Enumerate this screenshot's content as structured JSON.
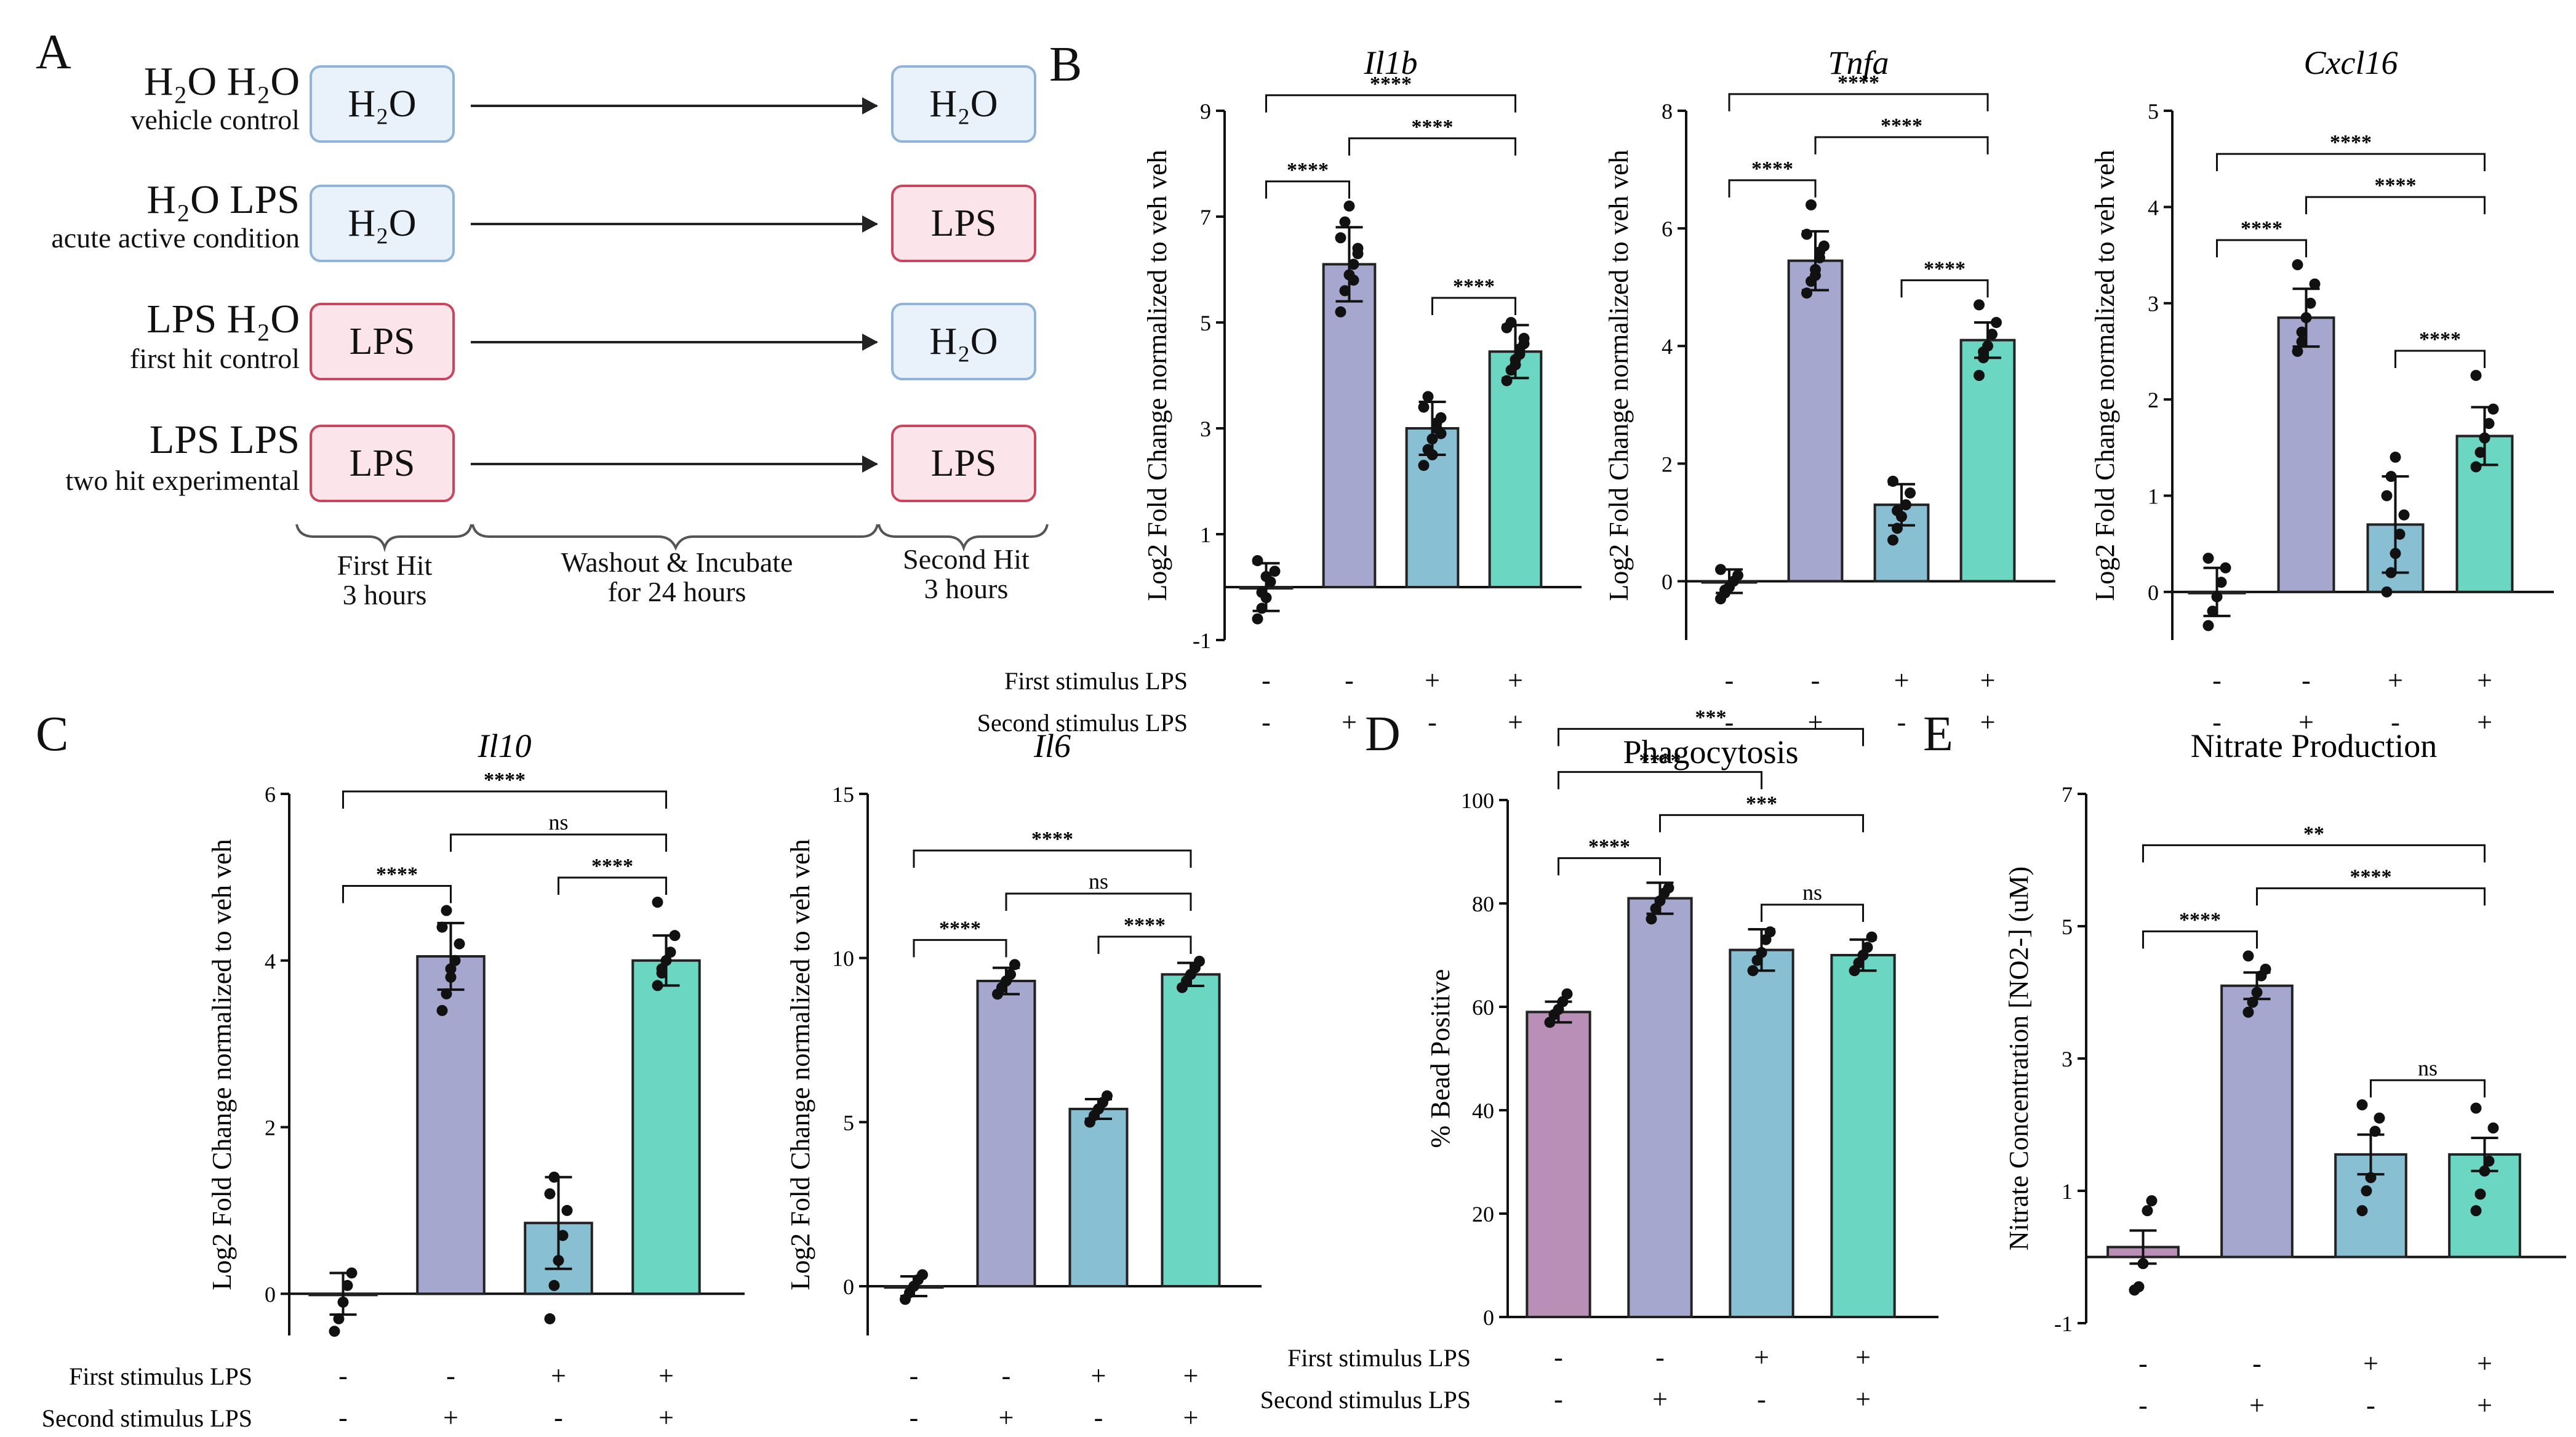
{
  "panel_labels": [
    "A",
    "B",
    "C",
    "D",
    "E"
  ],
  "schematic": {
    "conditions": [
      {
        "name": "H₂O H₂O",
        "sub": "vehicle control",
        "first": "H₂O",
        "second": "H₂O"
      },
      {
        "name": "H₂O LPS",
        "sub": "acute active condition",
        "first": "H₂O",
        "second": "LPS"
      },
      {
        "name": "LPS H₂O",
        "sub": "first hit control",
        "first": "LPS",
        "second": "H₂O"
      },
      {
        "name": "LPS LPS",
        "sub": "two hit experimental",
        "first": "LPS",
        "second": "LPS"
      }
    ],
    "phases": [
      {
        "line1": "First Hit",
        "line2": "3 hours"
      },
      {
        "line1": "Washout & Incubate",
        "line2": "for 24 hours"
      },
      {
        "line1": "Second Hit",
        "line2": "3 hours"
      }
    ]
  },
  "colors": {
    "purple": "#a6a7cf",
    "blue": "#88bfd2",
    "teal": "#6bd6c2",
    "mauve": "#b98fb8",
    "h2o_fill": "#e9f2fb",
    "lps_fill": "#fbe4ea"
  },
  "stim_rows": {
    "first_label": "First stimulus LPS",
    "second_label": "Second stimulus LPS",
    "first": [
      "-",
      "-",
      "+",
      "+"
    ],
    "second": [
      "-",
      "+",
      "-",
      "+"
    ]
  },
  "chart_data": [
    {
      "id": "il1b",
      "panel": "B",
      "type": "bar",
      "title": "Il1b",
      "title_italic": true,
      "ylabel": "Log2 Fold Change normalized to veh veh",
      "ylim": [
        -1,
        9
      ],
      "yticks": [
        -1,
        1,
        3,
        5,
        7,
        9
      ],
      "values": [
        0,
        6.1,
        3.0,
        4.45
      ],
      "errors": [
        0.45,
        0.7,
        0.5,
        0.5
      ],
      "points": [
        [
          -0.6,
          -0.4,
          -0.2,
          0.1,
          0.3,
          0.5,
          -0.1,
          0.2
        ],
        [
          5.2,
          5.6,
          5.9,
          6.1,
          6.3,
          6.6,
          6.9,
          7.2,
          5.8,
          6.4
        ],
        [
          2.3,
          2.6,
          2.8,
          3.0,
          3.2,
          3.4,
          3.6,
          2.5,
          3.1,
          2.9
        ],
        [
          3.9,
          4.1,
          4.3,
          4.5,
          4.7,
          4.9,
          5.0,
          4.2,
          4.4,
          4.6
        ]
      ],
      "color_keys": [
        "purple",
        "purple",
        "blue",
        "teal"
      ],
      "brackets": [
        {
          "from": 0,
          "to": 1,
          "label": "****",
          "level": 1
        },
        {
          "from": 1,
          "to": 3,
          "label": "****",
          "level": 2
        },
        {
          "from": 0,
          "to": 3,
          "label": "****",
          "level": 3
        },
        {
          "from": 2,
          "to": 3,
          "label": "****",
          "level": 1
        }
      ]
    },
    {
      "id": "tnfa",
      "panel": "B",
      "type": "bar",
      "title": "Tnfa",
      "title_italic": true,
      "ylabel": "Log2 Fold Change normalized to veh veh",
      "ylim": [
        -1,
        8
      ],
      "yticks": [
        0,
        2,
        4,
        6,
        8
      ],
      "values": [
        0,
        5.45,
        1.3,
        4.1
      ],
      "errors": [
        0.2,
        0.5,
        0.35,
        0.3
      ],
      "points": [
        [
          -0.3,
          -0.2,
          -0.1,
          0,
          0.1,
          0.2,
          -0.15
        ],
        [
          4.9,
          5.1,
          5.3,
          5.5,
          5.7,
          5.9,
          6.4,
          5.2,
          5.6
        ],
        [
          0.7,
          0.9,
          1.1,
          1.3,
          1.5,
          1.7,
          1.2
        ],
        [
          3.5,
          3.8,
          4.0,
          4.2,
          4.4,
          4.7,
          3.9
        ]
      ],
      "color_keys": [
        "purple",
        "purple",
        "blue",
        "teal"
      ],
      "brackets": [
        {
          "from": 0,
          "to": 1,
          "label": "****",
          "level": 1
        },
        {
          "from": 1,
          "to": 3,
          "label": "****",
          "level": 2
        },
        {
          "from": 0,
          "to": 3,
          "label": "****",
          "level": 3
        },
        {
          "from": 2,
          "to": 3,
          "label": "****",
          "level": 1
        }
      ]
    },
    {
      "id": "cxcl16",
      "panel": "B",
      "type": "bar",
      "title": "Cxcl16",
      "title_italic": true,
      "ylabel": "Log2 Fold Change normalized to veh veh",
      "ylim": [
        -0.5,
        5
      ],
      "yticks": [
        0,
        1,
        2,
        3,
        4,
        5
      ],
      "values": [
        0,
        2.85,
        0.7,
        1.62
      ],
      "errors": [
        0.25,
        0.3,
        0.5,
        0.3
      ],
      "points": [
        [
          -0.35,
          -0.2,
          -0.05,
          0.1,
          0.25,
          0.35
        ],
        [
          2.5,
          2.7,
          2.85,
          3.0,
          3.2,
          3.4,
          2.6
        ],
        [
          0.0,
          0.2,
          0.4,
          0.6,
          0.8,
          1.0,
          1.2,
          1.4
        ],
        [
          1.3,
          1.45,
          1.6,
          1.75,
          1.9,
          2.25
        ]
      ],
      "color_keys": [
        "purple",
        "purple",
        "blue",
        "teal"
      ],
      "brackets": [
        {
          "from": 0,
          "to": 1,
          "label": "****",
          "level": 1
        },
        {
          "from": 1,
          "to": 3,
          "label": "****",
          "level": 2
        },
        {
          "from": 0,
          "to": 3,
          "label": "****",
          "level": 3
        },
        {
          "from": 2,
          "to": 3,
          "label": "****",
          "level": 1
        }
      ]
    },
    {
      "id": "il10",
      "panel": "C",
      "type": "bar",
      "title": "Il10",
      "title_italic": true,
      "ylabel": "Log2 Fold Change normalized to veh veh",
      "ylim": [
        -0.5,
        6
      ],
      "yticks": [
        0,
        2,
        4,
        6
      ],
      "values": [
        0,
        4.05,
        0.85,
        4.0
      ],
      "errors": [
        0.25,
        0.4,
        0.55,
        0.3
      ],
      "points": [
        [
          -0.45,
          -0.3,
          -0.1,
          0.1,
          0.25
        ],
        [
          3.4,
          3.6,
          3.8,
          4.0,
          4.2,
          4.4,
          4.6,
          3.9
        ],
        [
          -0.3,
          0.1,
          0.4,
          0.7,
          1.0,
          1.2,
          1.4
        ],
        [
          3.7,
          3.85,
          4.0,
          4.1,
          4.3,
          4.7,
          3.9
        ]
      ],
      "color_keys": [
        "purple",
        "purple",
        "blue",
        "teal"
      ],
      "brackets": [
        {
          "from": 0,
          "to": 1,
          "label": "****",
          "level": 1
        },
        {
          "from": 1,
          "to": 3,
          "label": "ns",
          "level": 2
        },
        {
          "from": 0,
          "to": 3,
          "label": "****",
          "level": 3
        },
        {
          "from": 2,
          "to": 3,
          "label": "****",
          "level": 1
        }
      ]
    },
    {
      "id": "il6",
      "panel": "C",
      "type": "bar",
      "title": "Il6",
      "title_italic": true,
      "ylabel": "Log2 Fold Change normalized to veh veh",
      "ylim": [
        -1.5,
        15
      ],
      "yticks": [
        0,
        5,
        10,
        15
      ],
      "values": [
        0,
        9.3,
        5.4,
        9.5
      ],
      "errors": [
        0.3,
        0.4,
        0.3,
        0.35
      ],
      "points": [
        [
          -0.4,
          -0.2,
          0,
          0.2,
          0.35
        ],
        [
          8.9,
          9.1,
          9.3,
          9.5,
          9.8
        ],
        [
          5.0,
          5.2,
          5.4,
          5.6,
          5.8
        ],
        [
          9.1,
          9.3,
          9.5,
          9.7,
          9.9
        ]
      ],
      "color_keys": [
        "purple",
        "purple",
        "blue",
        "teal"
      ],
      "brackets": [
        {
          "from": 0,
          "to": 1,
          "label": "****",
          "level": 1
        },
        {
          "from": 1,
          "to": 3,
          "label": "ns",
          "level": 2
        },
        {
          "from": 0,
          "to": 3,
          "label": "****",
          "level": 3
        },
        {
          "from": 2,
          "to": 3,
          "label": "****",
          "level": 1
        }
      ]
    },
    {
      "id": "phago",
      "panel": "D",
      "type": "bar",
      "title": "Phagocytosis",
      "title_italic": false,
      "ylabel": "% Bead Positive",
      "ylim": [
        0,
        100
      ],
      "yticks": [
        0,
        20,
        40,
        60,
        80,
        100
      ],
      "values": [
        59,
        81,
        71,
        70
      ],
      "errors": [
        2,
        3,
        4,
        3
      ],
      "points": [
        [
          57,
          58.5,
          59.5,
          61,
          62.5
        ],
        [
          77,
          79,
          80.5,
          82,
          83
        ],
        [
          67,
          69,
          70.5,
          73,
          74.5
        ],
        [
          67,
          68.5,
          70,
          71.5,
          73.5
        ]
      ],
      "color_keys": [
        "mauve",
        "purple",
        "blue",
        "teal"
      ],
      "brackets": [
        {
          "from": 0,
          "to": 1,
          "label": "****",
          "level": 1
        },
        {
          "from": 2,
          "to": 3,
          "label": "ns",
          "level": 1
        },
        {
          "from": 1,
          "to": 3,
          "label": "***",
          "level": 2
        },
        {
          "from": 0,
          "to": 2,
          "label": "****",
          "level": 3
        },
        {
          "from": 0,
          "to": 3,
          "label": "***",
          "level": 4
        }
      ]
    },
    {
      "id": "nitrate",
      "panel": "E",
      "type": "bar",
      "title": "Nitrate Production",
      "title_italic": false,
      "ylabel": "Nitrate Concentration [NO2-] (uM)",
      "ylim": [
        -1,
        7
      ],
      "yticks": [
        -1,
        1,
        3,
        5,
        7
      ],
      "values": [
        0.15,
        4.1,
        1.55,
        1.55
      ],
      "errors": [
        0.25,
        0.2,
        0.3,
        0.25
      ],
      "points": [
        [
          -0.5,
          -0.45,
          -0.1,
          0.7,
          0.85
        ],
        [
          3.7,
          3.85,
          4.0,
          4.25,
          4.35,
          4.55
        ],
        [
          0.7,
          1.0,
          1.2,
          1.9,
          2.1,
          2.3
        ],
        [
          0.7,
          0.95,
          1.3,
          1.45,
          1.95,
          2.25
        ]
      ],
      "color_keys": [
        "mauve",
        "purple",
        "blue",
        "teal"
      ],
      "brackets": [
        {
          "from": 0,
          "to": 1,
          "label": "****",
          "level": 1
        },
        {
          "from": 2,
          "to": 3,
          "label": "ns",
          "level": 1
        },
        {
          "from": 1,
          "to": 3,
          "label": "****",
          "level": 2
        },
        {
          "from": 0,
          "to": 3,
          "label": "**",
          "level": 3
        }
      ]
    }
  ]
}
